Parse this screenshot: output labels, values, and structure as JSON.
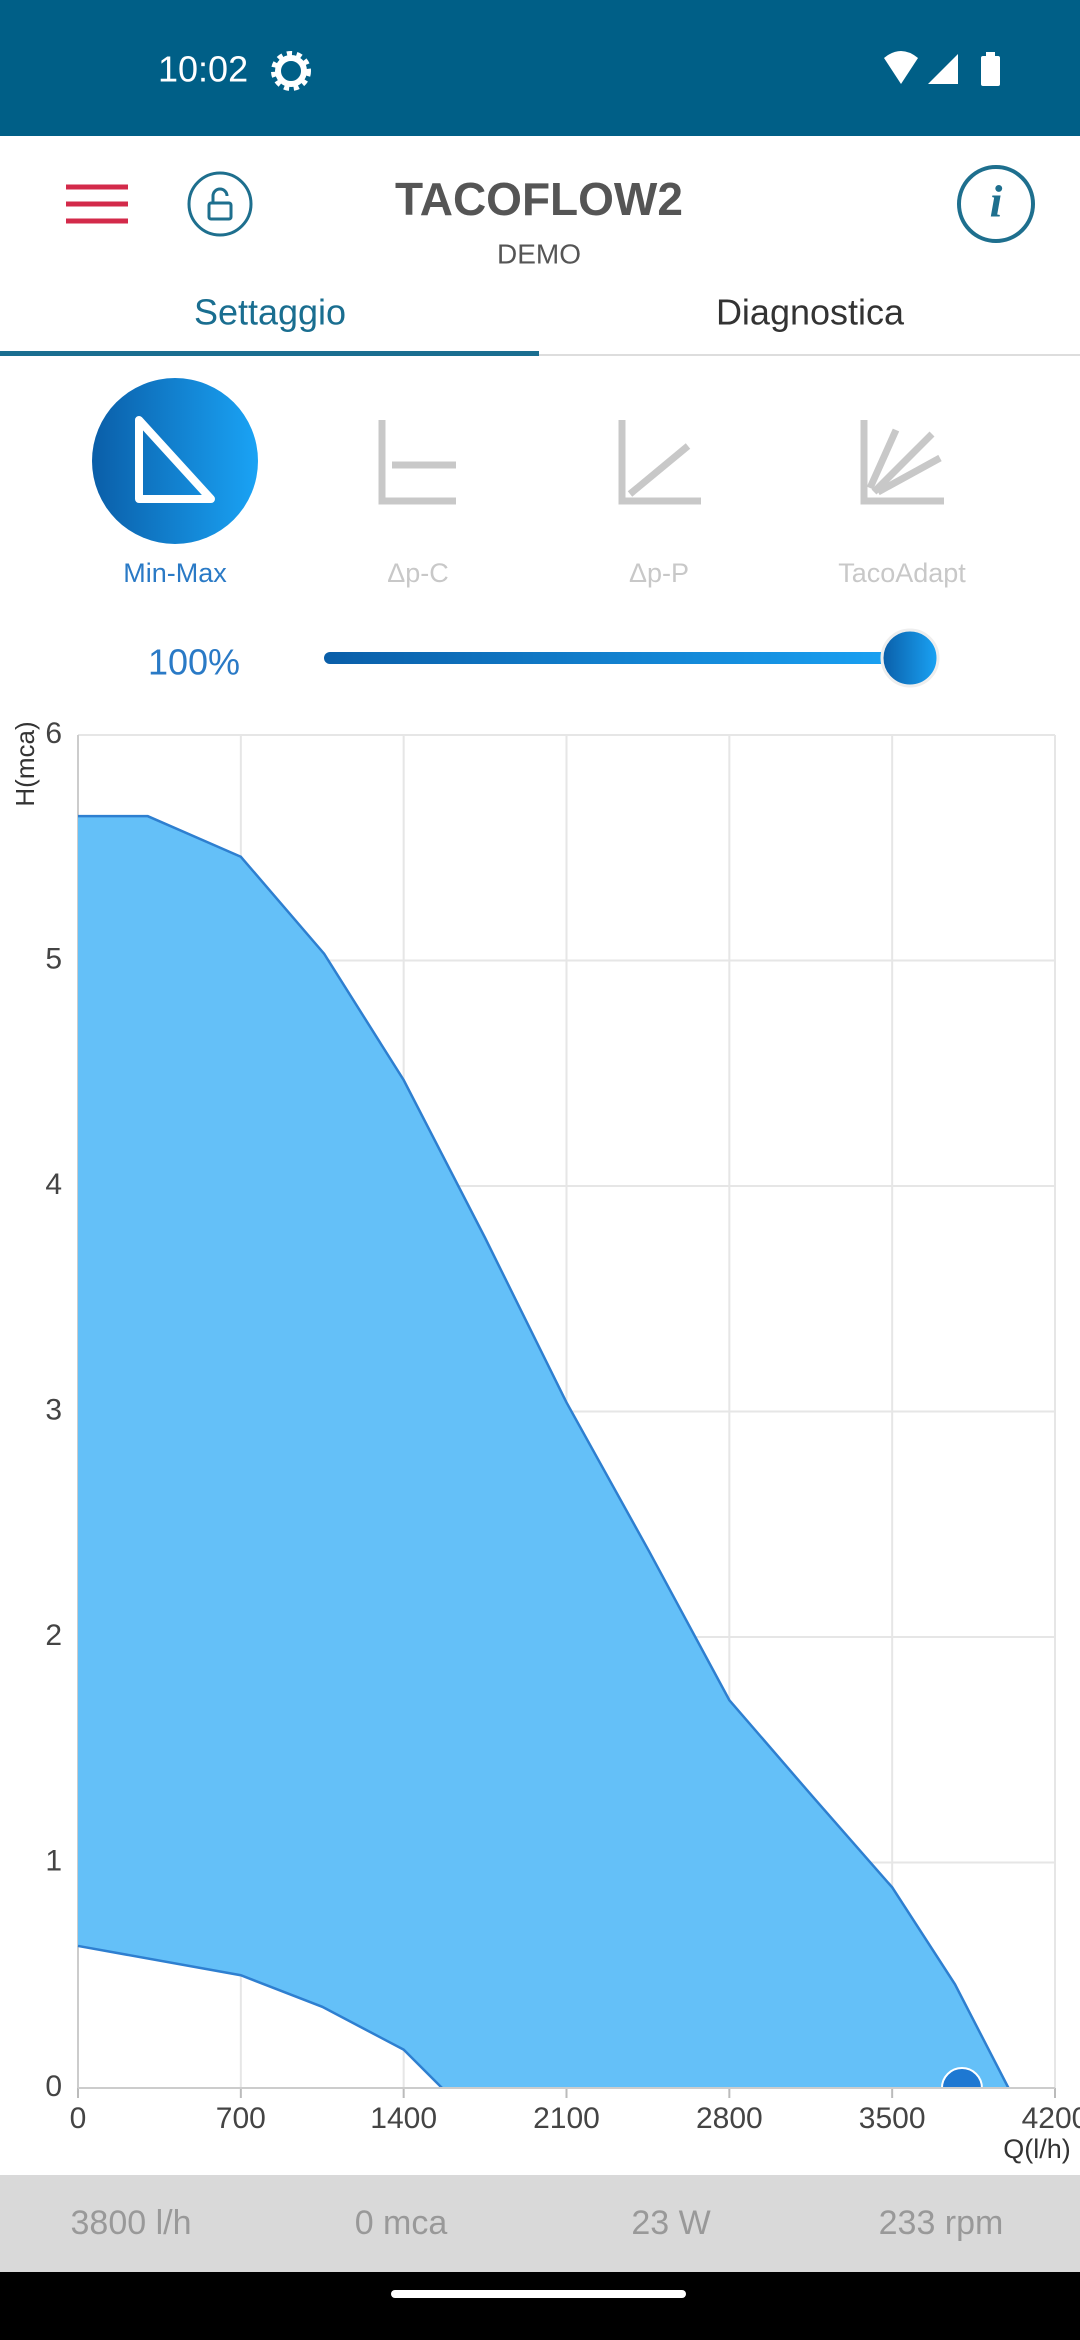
{
  "status": {
    "time": "10:02"
  },
  "header": {
    "title": "TACOFLOW2",
    "subtitle": "DEMO"
  },
  "tabs": [
    "Settaggio",
    "Diagnostica"
  ],
  "modes": [
    "Min-Max",
    "Δp-C",
    "Δp-P",
    "TacoAdapt"
  ],
  "slider": {
    "value": 100,
    "label": "100%"
  },
  "chart_data": {
    "type": "area",
    "ylabel": "H(mca)",
    "xlabel": "Q(l/h)",
    "series": [
      {
        "color": "#2e7fd0",
        "x": [
          0,
          300,
          700,
          1058,
          1400,
          1750,
          2100,
          2455,
          2800,
          3160,
          3500,
          3770,
          4000
        ],
        "values": [
          5.64,
          5.64,
          5.46,
          5.03,
          4.47,
          3.77,
          3.04,
          2.38,
          1.72,
          1.29,
          0.89,
          0.46,
          0
        ]
      },
      {
        "color": "#2e7fd0",
        "x": [
          0,
          700,
          1050,
          1400,
          1565
        ],
        "values": [
          0.63,
          0.5,
          0.36,
          0.17,
          0
        ]
      }
    ],
    "fill": "#64c0f8",
    "operating_point": {
      "x": 3800,
      "y": 0,
      "color": "#1e78d2"
    },
    "xlim": [
      0,
      4200
    ],
    "xticks": [
      0,
      700,
      1400,
      2100,
      2800,
      3500,
      4200
    ],
    "ylim": [
      0,
      6
    ],
    "yticks": [
      0,
      1,
      2,
      3,
      4,
      5,
      6
    ],
    "grid": true
  },
  "readouts": [
    "3800 l/h",
    "0 mca",
    "23 W",
    "233 rpm"
  ]
}
